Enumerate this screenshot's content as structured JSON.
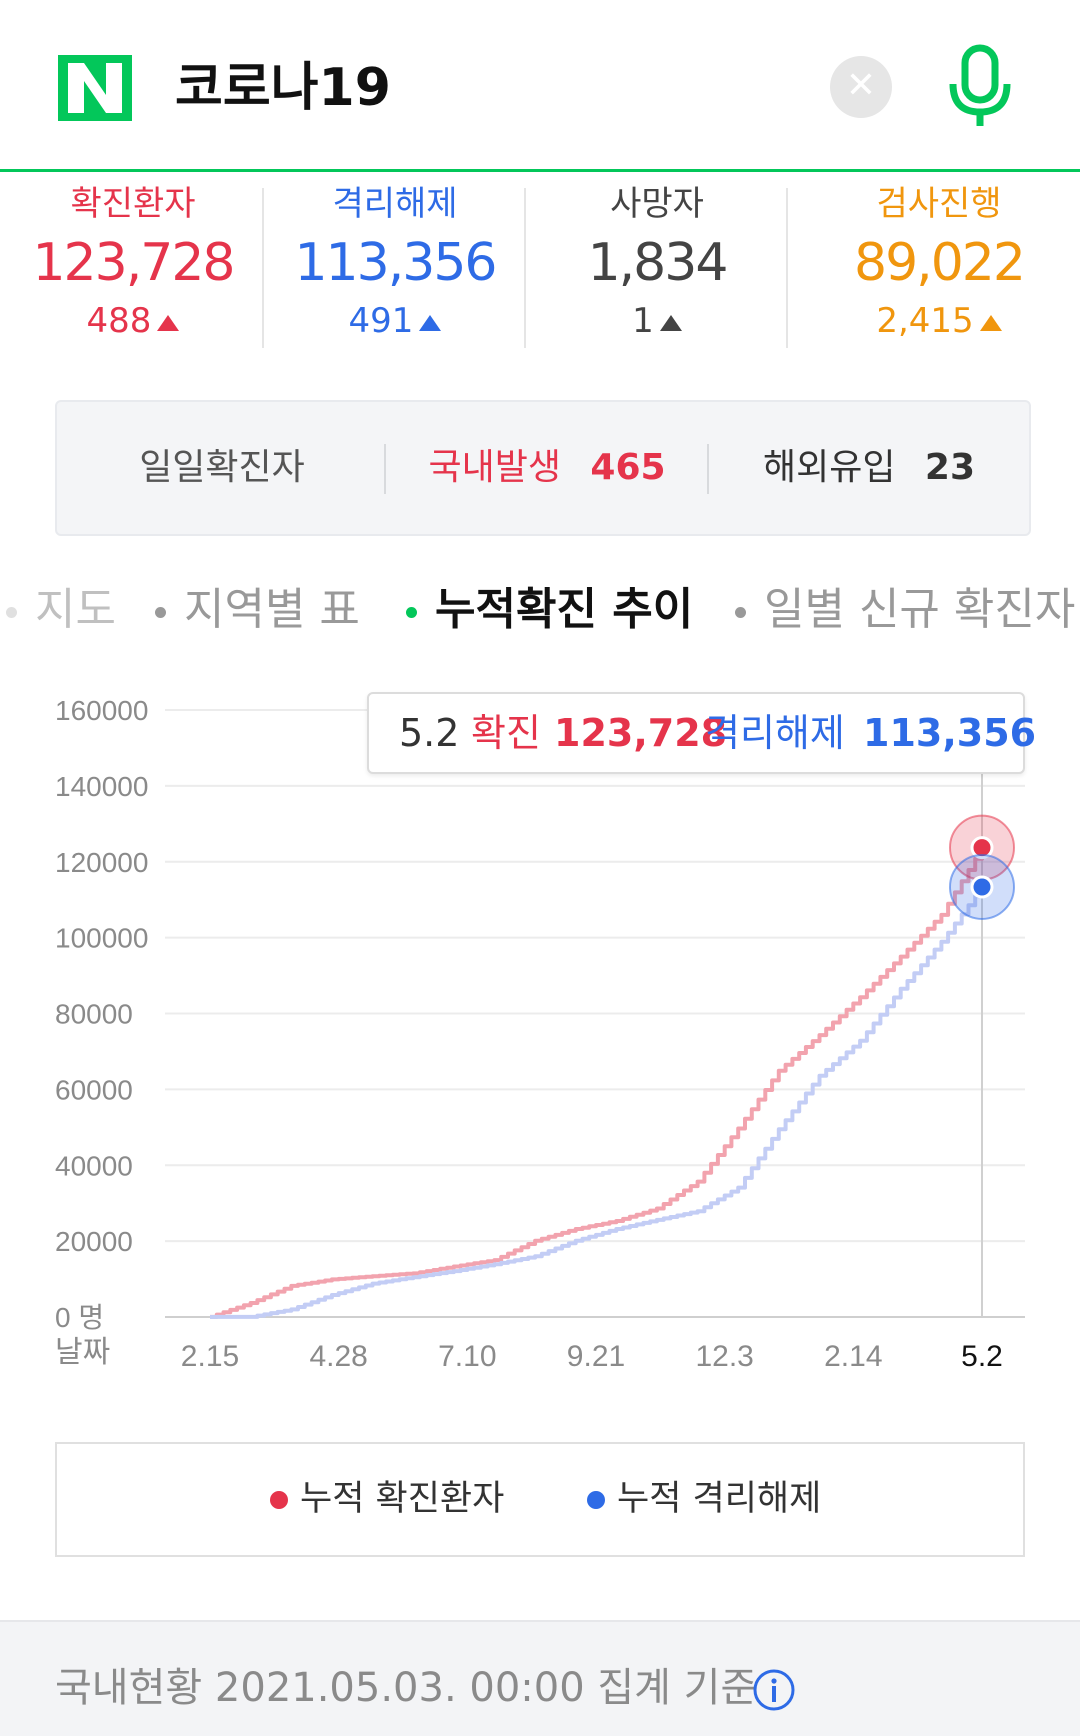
{
  "search": {
    "logo_letter": "N",
    "query": "코로나19",
    "clear_icon": "close-icon",
    "mic_icon": "microphone-icon",
    "brand_color": "#03c75a"
  },
  "stats": [
    {
      "label": "확진환자",
      "value": "123,728",
      "change": "488",
      "color": "#e5344b"
    },
    {
      "label": "격리해제",
      "value": "113,356",
      "change": "491",
      "color": "#2e6be6"
    },
    {
      "label": "사망자",
      "value": "1,834",
      "change": "1",
      "color": "#444444"
    },
    {
      "label": "검사진행",
      "value": "89,022",
      "change": "2,415",
      "color": "#f0960e"
    }
  ],
  "daily": {
    "title": "일일확진자",
    "domestic_label": "국내발생",
    "domestic_value": "465",
    "overseas_label": "해외유입",
    "overseas_value": "23"
  },
  "tabs": [
    {
      "label": "지도",
      "active": false
    },
    {
      "label": "지역별 표",
      "active": false
    },
    {
      "label": "누적확진 추이",
      "active": true
    },
    {
      "label": "일별 신규 확진자",
      "active": false
    }
  ],
  "tooltip": {
    "date": "5.2",
    "confirmed_label": "확진",
    "confirmed_value": "123,728",
    "released_label": "격리해제",
    "released_value": "113,356"
  },
  "chart_data": {
    "type": "line",
    "y_ticks": [
      "160000",
      "140000",
      "120000",
      "100000",
      "80000",
      "60000",
      "40000",
      "20000",
      "0 명"
    ],
    "ylim": [
      0,
      160000
    ],
    "xlabel": "날짜",
    "x_ticks": [
      "2.15",
      "4.28",
      "7.10",
      "9.21",
      "12.3",
      "2.14",
      "5.2"
    ],
    "x": [
      "2.15",
      "3.1",
      "3.15",
      "4.1",
      "4.28",
      "6.1",
      "7.10",
      "8.10",
      "8.31",
      "9.21",
      "10.20",
      "11.10",
      "12.3",
      "12.20",
      "1.5",
      "1.20",
      "2.14",
      "3.10",
      "4.5",
      "5.2"
    ],
    "series": [
      {
        "name": "누적 확진환자",
        "color": "#e5344b",
        "values": [
          28,
          3700,
          8200,
          9900,
          10750,
          11500,
          13300,
          15000,
          20100,
          23200,
          25300,
          28600,
          35700,
          49700,
          64900,
          74300,
          84300,
          95000,
          106000,
          123728
        ]
      },
      {
        "name": "누적 격리해제",
        "color": "#2e6be6",
        "values": [
          16,
          30,
          2000,
          5800,
          8800,
          10500,
          12100,
          13900,
          16000,
          20100,
          23200,
          25600,
          27900,
          34100,
          49500,
          63600,
          72800,
          86500,
          98900,
          113356
        ]
      }
    ],
    "legend_position": "bottom",
    "grid": true
  },
  "footer": {
    "text": "국내현황 2021.05.03. 00:00 집계 기준",
    "info_icon": "info-icon"
  }
}
